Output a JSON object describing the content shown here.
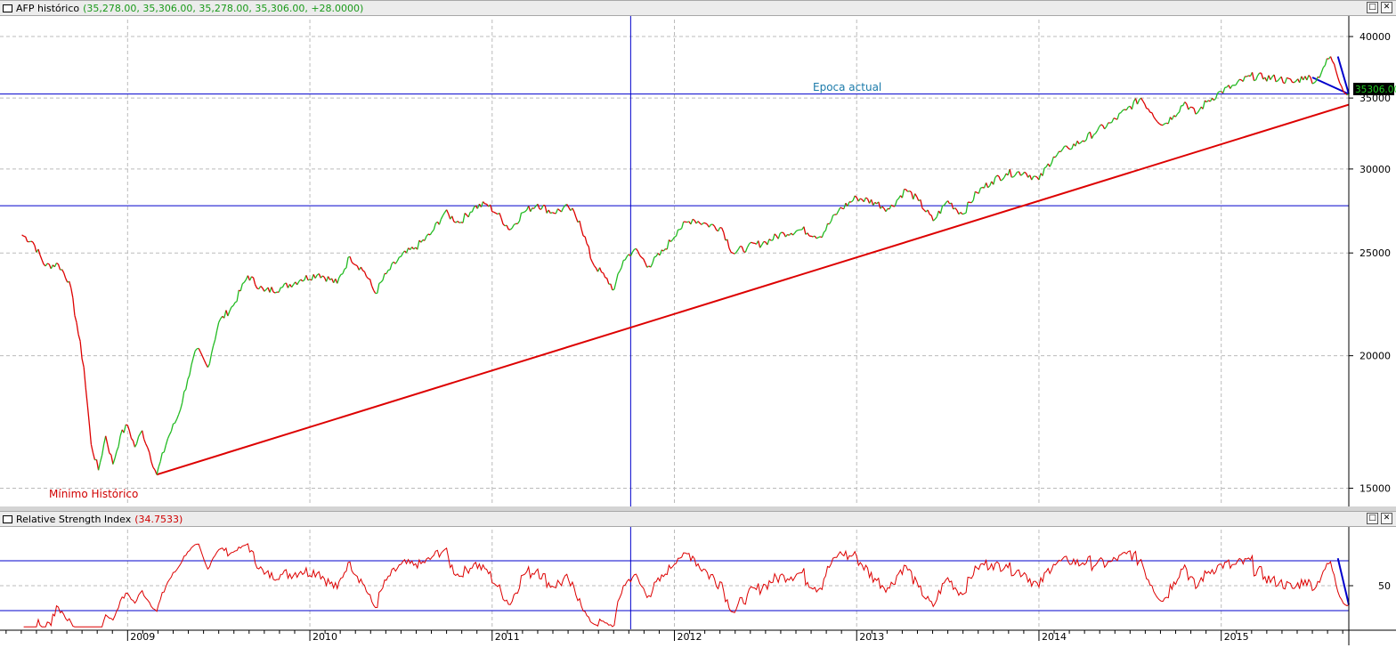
{
  "price_pane": {
    "title": "AFP histórico",
    "values": "(35,278.00, 35,306.00, 35,278.00, 35,306.00, +28.0000)",
    "last_price_label": "35306.00",
    "annotations": {
      "min_label": "Mínimo Histórico",
      "epoch_label": "Epoca actual"
    },
    "buttons": {
      "restore": "□",
      "close": "✕"
    },
    "colors": {
      "up": "#22bb22",
      "down": "#dd0000",
      "line": "#0000cc",
      "trend": "#dd0000"
    }
  },
  "rsi_pane": {
    "title": "Relative Strength Index",
    "values": "(34.7533)",
    "buttons": {
      "restore": "□",
      "close": "✕"
    }
  },
  "chart_data": [
    {
      "type": "line",
      "title": "AFP histórico",
      "scale": "log",
      "ylim": [
        14500,
        41500
      ],
      "yticks": [
        15000,
        20000,
        25000,
        30000,
        35000,
        40000
      ],
      "grid": true,
      "x_start": 2008.42,
      "x_end": 2015.7,
      "series": [
        {
          "values_by_time": [
            [
              2008.42,
              26000
            ],
            [
              2008.48,
              25600
            ],
            [
              2008.55,
              24300
            ],
            [
              2008.62,
              24400
            ],
            [
              2008.68,
              23500
            ],
            [
              2008.72,
              21500
            ],
            [
              2008.76,
              19500
            ],
            [
              2008.8,
              16500
            ],
            [
              2008.84,
              15600
            ],
            [
              2008.88,
              16800
            ],
            [
              2008.92,
              15800
            ],
            [
              2008.96,
              16800
            ],
            [
              2009.0,
              17200
            ],
            [
              2009.04,
              16400
            ],
            [
              2009.08,
              17000
            ],
            [
              2009.12,
              16200
            ],
            [
              2009.16,
              15450
            ],
            [
              2009.22,
              16700
            ],
            [
              2009.28,
              17600
            ],
            [
              2009.33,
              19000
            ],
            [
              2009.38,
              20300
            ],
            [
              2009.44,
              19500
            ],
            [
              2009.5,
              21500
            ],
            [
              2009.58,
              22300
            ],
            [
              2009.66,
              23800
            ],
            [
              2009.75,
              23000
            ],
            [
              2009.85,
              23200
            ],
            [
              2009.95,
              23600
            ],
            [
              2010.05,
              23900
            ],
            [
              2010.15,
              23400
            ],
            [
              2010.22,
              24800
            ],
            [
              2010.3,
              24000
            ],
            [
              2010.36,
              22900
            ],
            [
              2010.42,
              23900
            ],
            [
              2010.5,
              24800
            ],
            [
              2010.58,
              25300
            ],
            [
              2010.66,
              26000
            ],
            [
              2010.74,
              27300
            ],
            [
              2010.82,
              26700
            ],
            [
              2010.9,
              27600
            ],
            [
              2010.97,
              27800
            ],
            [
              2011.03,
              27200
            ],
            [
              2011.1,
              26300
            ],
            [
              2011.17,
              27300
            ],
            [
              2011.25,
              27800
            ],
            [
              2011.33,
              27300
            ],
            [
              2011.42,
              27600
            ],
            [
              2011.48,
              26800
            ],
            [
              2011.55,
              24500
            ],
            [
              2011.62,
              23700
            ],
            [
              2011.67,
              23100
            ],
            [
              2011.72,
              24600
            ],
            [
              2011.78,
              25200
            ],
            [
              2011.86,
              24300
            ],
            [
              2011.94,
              25100
            ],
            [
              2012.02,
              26300
            ],
            [
              2012.1,
              26900
            ],
            [
              2012.18,
              26600
            ],
            [
              2012.26,
              26400
            ],
            [
              2012.32,
              25000
            ],
            [
              2012.4,
              25300
            ],
            [
              2012.5,
              25600
            ],
            [
              2012.6,
              26100
            ],
            [
              2012.7,
              26300
            ],
            [
              2012.8,
              25900
            ],
            [
              2012.9,
              27400
            ],
            [
              2013.0,
              28200
            ],
            [
              2013.1,
              27900
            ],
            [
              2013.18,
              27500
            ],
            [
              2013.27,
              28700
            ],
            [
              2013.34,
              28000
            ],
            [
              2013.42,
              26800
            ],
            [
              2013.5,
              28000
            ],
            [
              2013.58,
              27200
            ],
            [
              2013.66,
              28500
            ],
            [
              2013.74,
              29200
            ],
            [
              2013.82,
              29700
            ],
            [
              2013.92,
              29800
            ],
            [
              2014.0,
              29300
            ],
            [
              2014.08,
              30800
            ],
            [
              2014.16,
              31400
            ],
            [
              2014.24,
              31900
            ],
            [
              2014.32,
              32600
            ],
            [
              2014.4,
              33200
            ],
            [
              2014.48,
              34100
            ],
            [
              2014.56,
              35000
            ],
            [
              2014.62,
              33900
            ],
            [
              2014.68,
              33000
            ],
            [
              2014.74,
              33700
            ],
            [
              2014.8,
              34700
            ],
            [
              2014.86,
              33800
            ],
            [
              2014.92,
              34700
            ],
            [
              2015.0,
              35500
            ],
            [
              2015.08,
              36000
            ],
            [
              2015.16,
              36700
            ],
            [
              2015.24,
              36600
            ],
            [
              2015.32,
              36500
            ],
            [
              2015.4,
              36200
            ],
            [
              2015.46,
              36700
            ],
            [
              2015.52,
              36300
            ],
            [
              2015.56,
              37400
            ],
            [
              2015.6,
              38300
            ],
            [
              2015.63,
              37100
            ],
            [
              2015.66,
              35900
            ],
            [
              2015.7,
              35306
            ]
          ]
        }
      ],
      "trendlines": [
        {
          "from": [
            2009.16,
            15450
          ],
          "to": [
            2015.7,
            34500
          ]
        },
        {
          "from": [
            2015.5,
            36600
          ],
          "to": [
            2015.7,
            35306
          ]
        },
        {
          "from": [
            2015.64,
            38300
          ],
          "to": [
            2015.7,
            35306
          ]
        }
      ],
      "hlines": [
        35306,
        27700
      ],
      "vline": 2011.76,
      "x_tick_labels": [
        "2009",
        "2010",
        "2011",
        "2012",
        "2013",
        "2014",
        "2015"
      ]
    },
    {
      "type": "line",
      "title": "Relative Strength Index",
      "ylim": [
        15,
        95
      ],
      "yticks": [
        50
      ],
      "hlines": [
        70,
        30
      ],
      "last_value": 34.7533
    }
  ]
}
